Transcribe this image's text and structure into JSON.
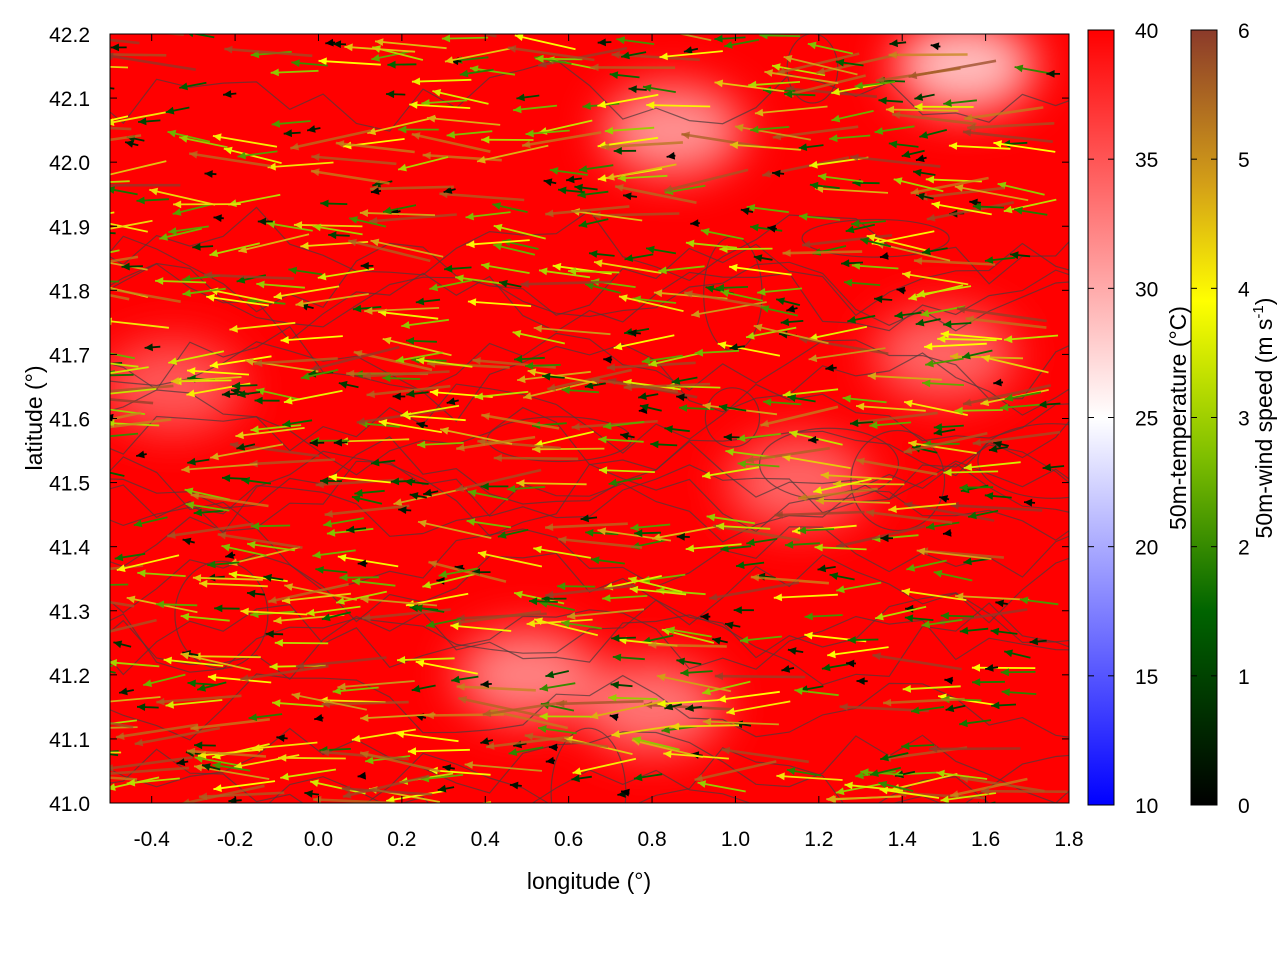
{
  "chart_data": {
    "type": "heatmap",
    "title": "",
    "xlabel": "longitude (°)",
    "ylabel": "latitude (°)",
    "xlim": [
      -0.5,
      1.8
    ],
    "ylim": [
      41.0,
      42.2
    ],
    "xticks": [
      "-0.4",
      "-0.2",
      "0.0",
      "0.2",
      "0.4",
      "0.6",
      "0.8",
      "1.0",
      "1.2",
      "1.4",
      "1.6",
      "1.8"
    ],
    "xtick_values": [
      -0.4,
      -0.2,
      0.0,
      0.2,
      0.4,
      0.6,
      0.8,
      1.0,
      1.2,
      1.4,
      1.6,
      1.8
    ],
    "yticks": [
      "41.0",
      "41.1",
      "41.2",
      "41.3",
      "41.4",
      "41.5",
      "41.6",
      "41.7",
      "41.8",
      "41.9",
      "42.0",
      "42.1",
      "42.2"
    ],
    "ytick_values": [
      41.0,
      41.1,
      41.2,
      41.3,
      41.4,
      41.5,
      41.6,
      41.7,
      41.8,
      41.9,
      42.0,
      42.1,
      42.2
    ],
    "grid": false,
    "temperature_colorbar": {
      "label": "50m-temperature (°C)",
      "range": [
        10,
        40
      ],
      "ticks": [
        "10",
        "15",
        "20",
        "25",
        "30",
        "35",
        "40"
      ],
      "tick_values": [
        10,
        15,
        20,
        25,
        30,
        35,
        40
      ],
      "colors": [
        "#0000ff",
        "#ffffff",
        "#ff0000"
      ]
    },
    "wind_colorbar": {
      "label": "50m-wind speed (m s",
      "label_sup": "-1",
      "label_end": ")",
      "range": [
        0,
        6
      ],
      "ticks": [
        "0",
        "1",
        "2",
        "3",
        "4",
        "5",
        "6"
      ],
      "tick_values": [
        0,
        1,
        2,
        3,
        4,
        5,
        6
      ],
      "colors": [
        "#000000",
        "#006400",
        "#7fbf00",
        "#ffff00",
        "#d4a017",
        "#b8860b",
        "#8b3a2a"
      ]
    },
    "background_temperature_c": 40,
    "cool_regions": [
      {
        "lon": 0.85,
        "lat": 42.05,
        "temp_c": 30
      },
      {
        "lon": 1.55,
        "lat": 42.15,
        "temp_c": 27
      },
      {
        "lon": 1.15,
        "lat": 41.5,
        "temp_c": 33
      },
      {
        "lon": 1.5,
        "lat": 41.7,
        "temp_c": 33
      },
      {
        "lon": 0.5,
        "lat": 41.2,
        "temp_c": 31
      },
      {
        "lon": 0.8,
        "lat": 41.15,
        "temp_c": 32
      },
      {
        "lon": -0.35,
        "lat": 41.65,
        "temp_c": 34
      }
    ],
    "wind_field": {
      "mean_direction": "westward",
      "speed_range": [
        0,
        6
      ]
    }
  }
}
